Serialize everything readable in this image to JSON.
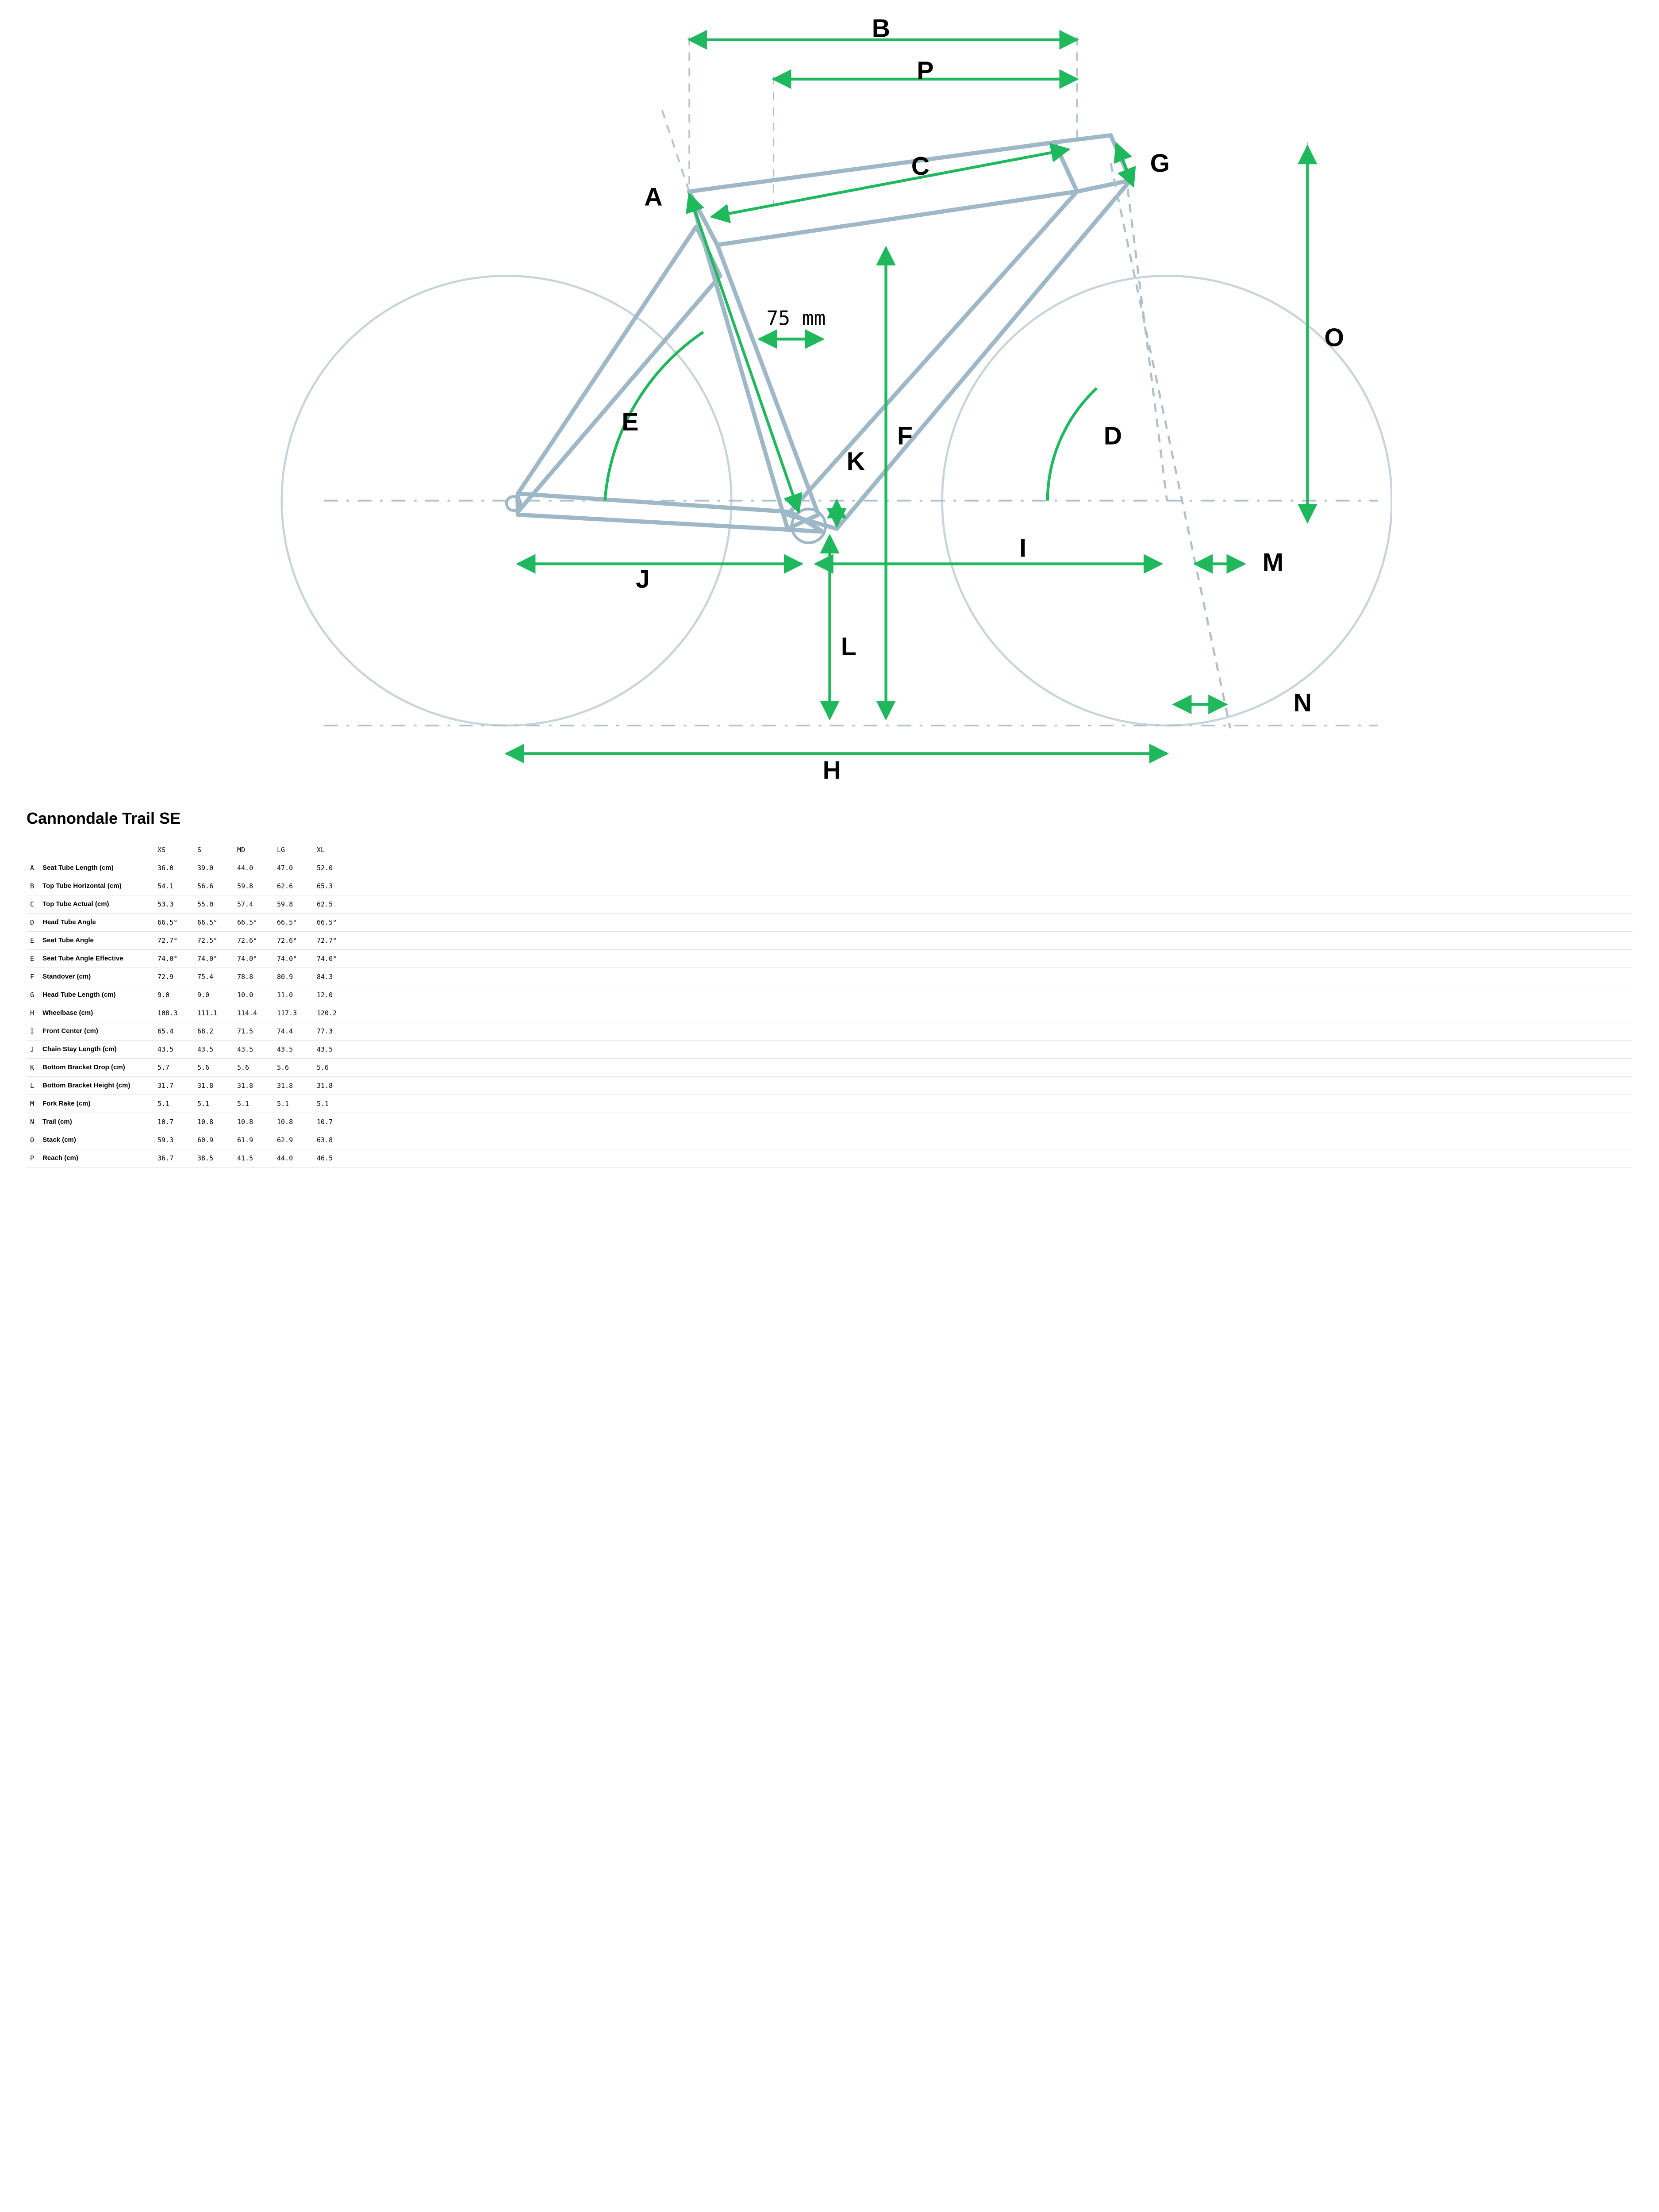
{
  "title": "Cannondale Trail SE",
  "diagram": {
    "frame_stroke": "#9fb8c8",
    "frame_stroke_width": 3,
    "wheel_stroke": "#c8d4dc",
    "wheel_stroke_width": 1.5,
    "dash_stroke": "#b0c0cc",
    "arrow_stroke": "#1fb85c",
    "arrow_stroke_width": 2,
    "label_color": "#000000",
    "label_font_size": 18,
    "label_font_weight": 700,
    "inner_label": "75 mm",
    "labels": [
      "A",
      "B",
      "C",
      "D",
      "E",
      "F",
      "G",
      "H",
      "I",
      "J",
      "K",
      "L",
      "M",
      "N",
      "O",
      "P"
    ]
  },
  "table": {
    "sizes": [
      "XS",
      "S",
      "MD",
      "LG",
      "XL"
    ],
    "rows": [
      {
        "letter": "A",
        "label": "Seat Tube Length (cm)",
        "vals": [
          "36.0",
          "39.0",
          "44.0",
          "47.0",
          "52.0"
        ]
      },
      {
        "letter": "B",
        "label": "Top Tube Horizontal (cm)",
        "vals": [
          "54.1",
          "56.6",
          "59.8",
          "62.6",
          "65.3"
        ]
      },
      {
        "letter": "C",
        "label": "Top Tube Actual (cm)",
        "vals": [
          "53.3",
          "55.0",
          "57.4",
          "59.8",
          "62.5"
        ]
      },
      {
        "letter": "D",
        "label": "Head Tube Angle",
        "vals": [
          "66.5°",
          "66.5°",
          "66.5°",
          "66.5°",
          "66.5°"
        ]
      },
      {
        "letter": "E",
        "label": "Seat Tube Angle",
        "vals": [
          "72.7°",
          "72.5°",
          "72.6°",
          "72.6°",
          "72.7°"
        ]
      },
      {
        "letter": "E",
        "label": "Seat Tube Angle Effective",
        "vals": [
          "74.0°",
          "74.0°",
          "74.0°",
          "74.0°",
          "74.0°"
        ]
      },
      {
        "letter": "F",
        "label": "Standover (cm)",
        "vals": [
          "72.9",
          "75.4",
          "78.8",
          "80.9",
          "84.3"
        ]
      },
      {
        "letter": "G",
        "label": "Head Tube Length (cm)",
        "vals": [
          "9.0",
          "9.0",
          "10.0",
          "11.0",
          "12.0"
        ]
      },
      {
        "letter": "H",
        "label": "Wheelbase (cm)",
        "vals": [
          "108.3",
          "111.1",
          "114.4",
          "117.3",
          "120.2"
        ]
      },
      {
        "letter": "I",
        "label": "Front Center (cm)",
        "vals": [
          "65.4",
          "68.2",
          "71.5",
          "74.4",
          "77.3"
        ]
      },
      {
        "letter": "J",
        "label": "Chain Stay Length (cm)",
        "vals": [
          "43.5",
          "43.5",
          "43.5",
          "43.5",
          "43.5"
        ]
      },
      {
        "letter": "K",
        "label": "Bottom Bracket Drop (cm)",
        "vals": [
          "5.7",
          "5.6",
          "5.6",
          "5.6",
          "5.6"
        ]
      },
      {
        "letter": "L",
        "label": "Bottom Bracket Height (cm)",
        "vals": [
          "31.7",
          "31.8",
          "31.8",
          "31.8",
          "31.8"
        ]
      },
      {
        "letter": "M",
        "label": "Fork Rake (cm)",
        "vals": [
          "5.1",
          "5.1",
          "5.1",
          "5.1",
          "5.1"
        ]
      },
      {
        "letter": "N",
        "label": "Trail (cm)",
        "vals": [
          "10.7",
          "10.8",
          "10.8",
          "10.8",
          "10.7"
        ]
      },
      {
        "letter": "O",
        "label": "Stack (cm)",
        "vals": [
          "59.3",
          "60.9",
          "61.9",
          "62.9",
          "63.8"
        ]
      },
      {
        "letter": "P",
        "label": "Reach (cm)",
        "vals": [
          "36.7",
          "38.5",
          "41.5",
          "44.0",
          "46.5"
        ]
      }
    ]
  }
}
